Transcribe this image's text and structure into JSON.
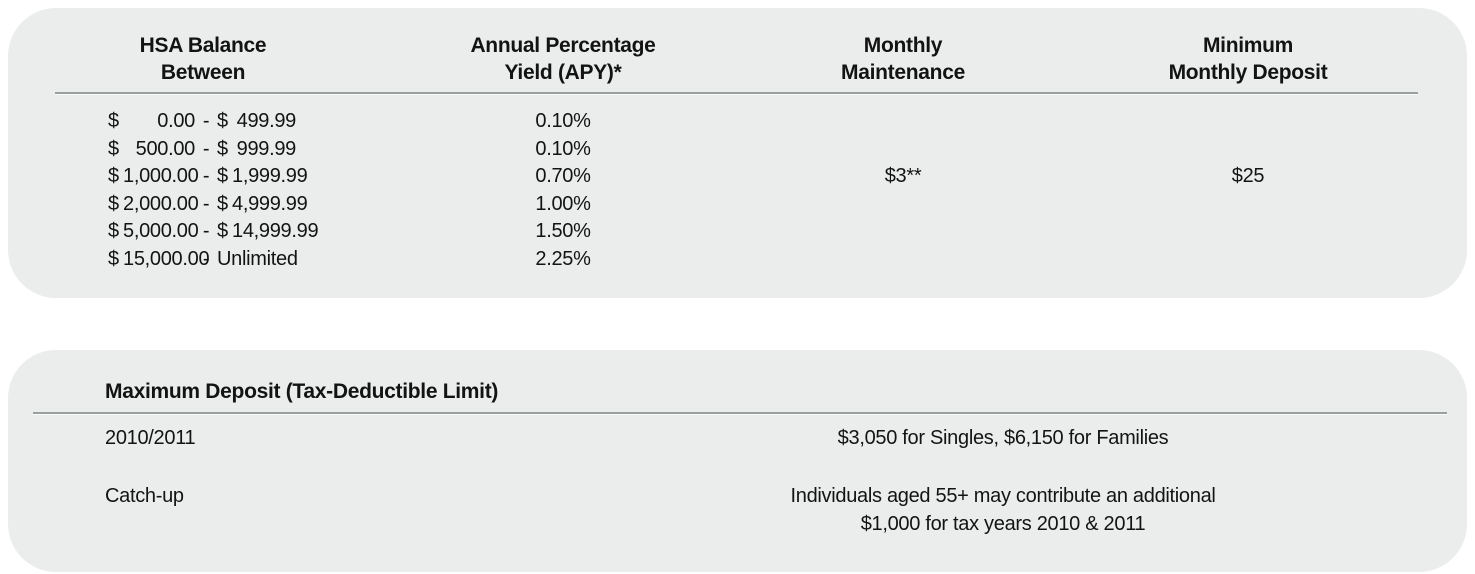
{
  "colors": {
    "panel_background": "#ebedec",
    "divider": "#9aa0a0",
    "text": "#131313"
  },
  "rate_table": {
    "currency_symbol": "$",
    "range_separator": "-",
    "headers": {
      "balance_line1": "HSA Balance",
      "balance_line2": "Between",
      "apy_line1": "Annual Percentage",
      "apy_line2": "Yield (APY)*",
      "maintenance_line1": "Monthly",
      "maintenance_line2": "Maintenance",
      "min_deposit_line1": "Minimum",
      "min_deposit_line2": "Monthly Deposit"
    },
    "rows": [
      {
        "min": "0.00",
        "max": "499.99",
        "apy": "0.10%"
      },
      {
        "min": "500.00",
        "max": "999.99",
        "apy": "0.10%"
      },
      {
        "min": "1,000.00",
        "max": "1,999.99",
        "apy": "0.70%"
      },
      {
        "min": "2,000.00",
        "max": "4,999.99",
        "apy": "1.00%"
      },
      {
        "min": "5,000.00",
        "max": "14,999.99",
        "apy": "1.50%"
      },
      {
        "min": "15,000.00",
        "max": "Unlimited",
        "apy": "2.25%"
      }
    ],
    "monthly_maintenance_value": "$3**",
    "minimum_monthly_deposit_value": "$25"
  },
  "max_deposit_table": {
    "title": "Maximum Deposit (Tax-Deductible Limit)",
    "rows": [
      {
        "label": "2010/2011",
        "value_line1": "$3,050 for Singles, $6,150 for Families"
      },
      {
        "label": "Catch-up",
        "value_line1": "Individuals aged 55+ may contribute an additional",
        "value_line2": "$1,000 for tax years 2010 & 2011"
      }
    ]
  }
}
